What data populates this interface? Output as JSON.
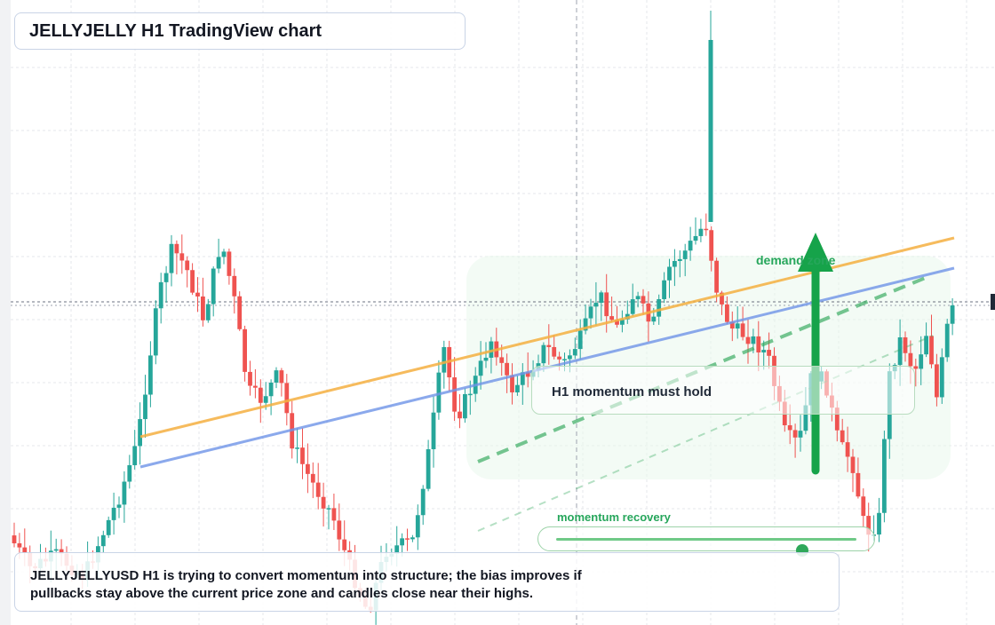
{
  "header": {
    "title": "JELLYJELLY H1 TradingView chart"
  },
  "chart": {
    "symbol": "JELLYJELLYUSD",
    "timeframe": "H1",
    "up_color": "#26a69a",
    "down_color": "#ef5350",
    "grid": true,
    "price_axis_labels": "not visible",
    "lines": [
      {
        "name": "orange",
        "color": "#f5b041"
      },
      {
        "name": "blue",
        "color": "#6f94e8"
      },
      {
        "name": "green-dashed",
        "color": "#2fa85a"
      }
    ]
  },
  "annotations": {
    "momentum_label": "H1 momentum must hold",
    "demand_label": "demand zone",
    "recovery_label": "momentum recovery",
    "recovery_level_pct": 82
  },
  "summary": {
    "text": "JELLYJELLYUSD H1 is trying to convert momentum into structure; the bias improves if pullbacks stay above the current price zone and candles close near their highs."
  },
  "icons": {
    "up_arrow": "arrow-up-icon"
  },
  "colors": {
    "accent_green": "#26a65b",
    "arrow_green": "#16a34a"
  }
}
